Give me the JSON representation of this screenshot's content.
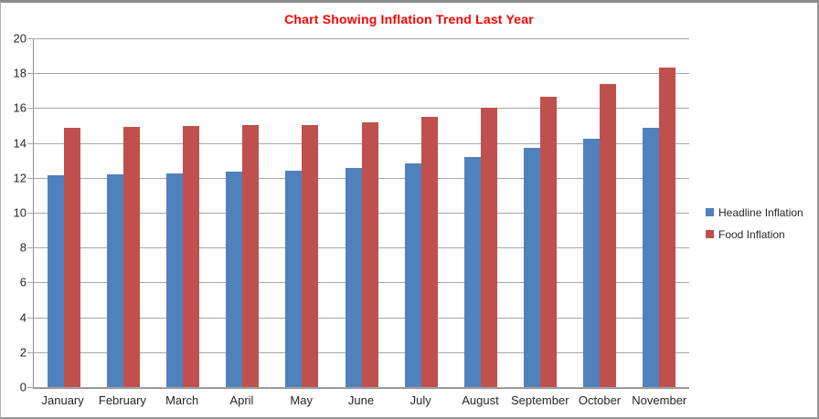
{
  "title": "Chart Showing Inflation Trend Last Year",
  "title_color": "#FF0000",
  "chart_data": {
    "type": "bar",
    "title": "Chart Showing Inflation Trend Last Year",
    "categories": [
      "January",
      "February",
      "March",
      "April",
      "May",
      "June",
      "July",
      "August",
      "September",
      "October",
      "November"
    ],
    "series": [
      {
        "name": "Headline Inflation",
        "color": "#4F81BD",
        "values": [
          12.13,
          12.2,
          12.26,
          12.34,
          12.4,
          12.56,
          12.82,
          13.22,
          13.71,
          14.23,
          14.89
        ]
      },
      {
        "name": "Food Inflation",
        "color": "#C0504D",
        "values": [
          14.85,
          14.9,
          14.98,
          15.03,
          15.04,
          15.18,
          15.48,
          16.0,
          16.66,
          17.38,
          18.3
        ]
      }
    ],
    "xlabel": "",
    "ylabel": "",
    "ylim": [
      0,
      20
    ],
    "yticks": [
      20,
      18,
      16,
      14,
      12,
      10,
      8,
      6,
      4,
      2,
      0
    ],
    "grid": true,
    "gridline_color": "#a6a6a6",
    "legend_position": "right"
  },
  "legend": {
    "items": [
      {
        "label": "Headline Inflation"
      },
      {
        "label": "Food Inflation"
      }
    ]
  }
}
